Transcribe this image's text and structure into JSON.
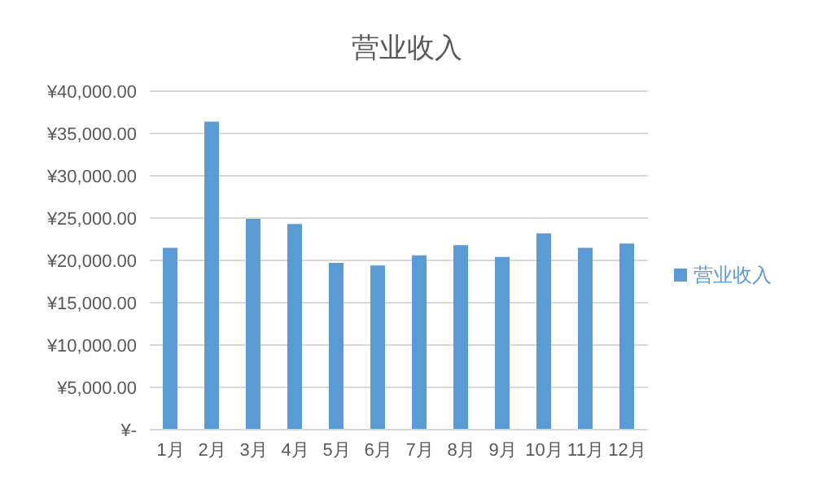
{
  "chart_data": {
    "type": "bar",
    "title": "营业收入",
    "categories": [
      "1月",
      "2月",
      "3月",
      "4月",
      "5月",
      "6月",
      "7月",
      "8月",
      "9月",
      "10月",
      "11月",
      "12月"
    ],
    "series": [
      {
        "name": "营业收入",
        "color": "#5b9bd5",
        "values": [
          21500,
          36400,
          24900,
          24300,
          19700,
          19400,
          20600,
          21800,
          20400,
          23200,
          21500,
          22000
        ]
      }
    ],
    "ylim": [
      0,
      40000
    ],
    "yticks": [
      {
        "value": 0,
        "label": "¥-"
      },
      {
        "value": 5000,
        "label": "¥5,000.00"
      },
      {
        "value": 10000,
        "label": "¥10,000.00"
      },
      {
        "value": 15000,
        "label": "¥15,000.00"
      },
      {
        "value": 20000,
        "label": "¥20,000.00"
      },
      {
        "value": 25000,
        "label": "¥25,000.00"
      },
      {
        "value": 30000,
        "label": "¥30,000.00"
      },
      {
        "value": 35000,
        "label": "¥35,000.00"
      },
      {
        "value": 40000,
        "label": "¥40,000.00"
      }
    ],
    "grid": "y",
    "legend": "right"
  }
}
